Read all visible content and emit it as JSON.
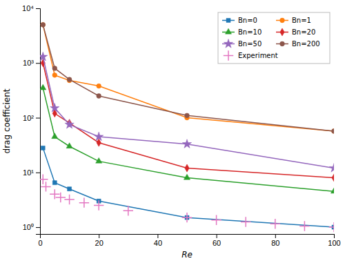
{
  "chart_data": {
    "type": "line",
    "x_label": "Re",
    "y_label": "drag coefficient",
    "log": "y",
    "grid": false,
    "legend": "upper right",
    "xlim": [
      0,
      100
    ],
    "ylim": [
      0.75,
      10000
    ],
    "xticks": [
      0,
      20,
      40,
      60,
      80,
      100
    ],
    "yticks": [
      {
        "value": 1,
        "label": "10⁰"
      },
      {
        "value": 10,
        "label": "10¹"
      },
      {
        "value": 100,
        "label": "10²"
      },
      {
        "value": 1000,
        "label": "10³"
      },
      {
        "value": 10000,
        "label": "10⁴"
      }
    ],
    "series": [
      {
        "name": "Bn=0",
        "type": "line",
        "marker": "square",
        "line_style": "solid",
        "x": [
          1,
          5,
          10,
          20,
          50,
          100
        ],
        "values": [
          28,
          6.5,
          5.0,
          3.0,
          1.5,
          1.0
        ]
      },
      {
        "name": "Bn=1",
        "type": "line",
        "marker": "circle",
        "line_style": "solid",
        "x": [
          1,
          5,
          10,
          20,
          50,
          100
        ],
        "values": [
          5000,
          600,
          480,
          380,
          100,
          57
        ]
      },
      {
        "name": "Bn=10",
        "type": "line",
        "marker": "triangle",
        "line_style": "solid",
        "x": [
          1,
          5,
          10,
          20,
          50,
          100
        ],
        "values": [
          350,
          45,
          30,
          16,
          8,
          4.5
        ]
      },
      {
        "name": "Bn=20",
        "type": "line",
        "marker": "diamond",
        "line_style": "solid",
        "x": [
          1,
          5,
          10,
          20,
          50,
          100
        ],
        "values": [
          1000,
          120,
          80,
          35,
          12,
          8.0
        ]
      },
      {
        "name": "Bn=50",
        "type": "line",
        "marker": "star",
        "line_style": "solid",
        "x": [
          1,
          5,
          10,
          20,
          50,
          100
        ],
        "values": [
          1300,
          150,
          75,
          45,
          33,
          12
        ]
      },
      {
        "name": "Bn=200",
        "type": "line",
        "marker": "circle",
        "line_style": "solid",
        "x": [
          1,
          5,
          10,
          20,
          50,
          100
        ],
        "values": [
          5000,
          800,
          500,
          250,
          110,
          57
        ]
      },
      {
        "name": "Experiment",
        "type": "scatter",
        "marker": "plus",
        "line_style": "none",
        "x": [
          1,
          2,
          5,
          7,
          10,
          15,
          20,
          30,
          50,
          60,
          70,
          80,
          90,
          100
        ],
        "values": [
          7.5,
          5.5,
          4.0,
          3.5,
          3.2,
          2.8,
          2.5,
          2.0,
          1.5,
          1.35,
          1.25,
          1.15,
          1.05,
          1.0
        ]
      }
    ]
  }
}
